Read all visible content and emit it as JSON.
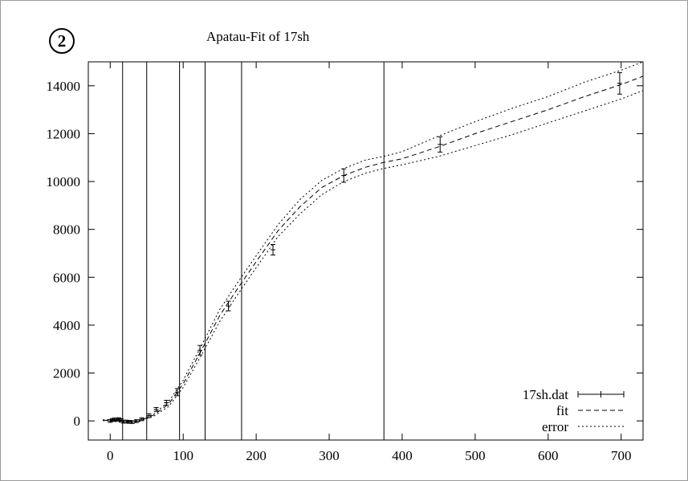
{
  "panel_label": "2",
  "chart_data": {
    "type": "scatter",
    "title": "Apatau-Fit of  17sh",
    "xlabel": "",
    "ylabel": "",
    "xlim": [
      -30,
      730
    ],
    "ylim": [
      -800,
      15000
    ],
    "xticks": [
      0,
      100,
      200,
      300,
      400,
      500,
      600,
      700
    ],
    "yticks": [
      0,
      2000,
      4000,
      6000,
      8000,
      10000,
      12000,
      14000
    ],
    "vertical_lines": [
      17,
      50,
      95,
      130,
      180,
      375
    ],
    "legend_position": "bottom-right",
    "legend": [
      "17sh.dat",
      "fit",
      "error"
    ],
    "series": [
      {
        "name": "17sh.dat",
        "style": "errorbars",
        "x": [
          0,
          3,
          6,
          9,
          12,
          15,
          18,
          22,
          26,
          30,
          36,
          43,
          53,
          63,
          77,
          92,
          123,
          162,
          223,
          320,
          452,
          698
        ],
        "y": [
          0,
          40,
          60,
          50,
          70,
          30,
          -30,
          -30,
          -40,
          -50,
          -10,
          70,
          220,
          480,
          760,
          1200,
          2950,
          4800,
          7150,
          10250,
          11550,
          14100
        ],
        "err": [
          60,
          60,
          60,
          60,
          60,
          60,
          60,
          60,
          60,
          60,
          60,
          60,
          80,
          80,
          100,
          150,
          200,
          200,
          220,
          280,
          320,
          450
        ]
      },
      {
        "name": "fit",
        "style": "dashed",
        "x": [
          -10,
          0,
          20,
          40,
          60,
          80,
          100,
          125,
          150,
          175,
          200,
          230,
          260,
          290,
          320,
          350,
          375,
          400,
          450,
          500,
          550,
          600,
          650,
          700,
          730
        ],
        "y": [
          30,
          20,
          -50,
          0,
          250,
          700,
          1550,
          2950,
          4400,
          5550,
          6650,
          7950,
          8950,
          9750,
          10250,
          10600,
          10800,
          10950,
          11450,
          12000,
          12500,
          13000,
          13550,
          14050,
          14400
        ]
      },
      {
        "name": "error-upper",
        "style": "dotted",
        "x": [
          -10,
          0,
          20,
          40,
          60,
          80,
          100,
          125,
          150,
          175,
          200,
          230,
          260,
          290,
          320,
          350,
          375,
          400,
          450,
          500,
          550,
          600,
          650,
          700,
          730
        ],
        "y": [
          50,
          40,
          -20,
          30,
          300,
          800,
          1700,
          3150,
          4650,
          5800,
          6900,
          8200,
          9250,
          10050,
          10550,
          10900,
          11050,
          11250,
          11900,
          12500,
          13050,
          13550,
          14150,
          14650,
          15000
        ]
      },
      {
        "name": "error-lower",
        "style": "dotted",
        "x": [
          -10,
          0,
          20,
          40,
          60,
          80,
          100,
          125,
          150,
          175,
          200,
          230,
          260,
          290,
          320,
          350,
          375,
          400,
          450,
          500,
          550,
          600,
          650,
          700,
          730
        ],
        "y": [
          10,
          0,
          -80,
          -30,
          200,
          600,
          1400,
          2750,
          4150,
          5300,
          6400,
          7700,
          8650,
          9450,
          10000,
          10350,
          10550,
          10700,
          11050,
          11500,
          11950,
          12450,
          12950,
          13450,
          13800
        ]
      }
    ]
  }
}
